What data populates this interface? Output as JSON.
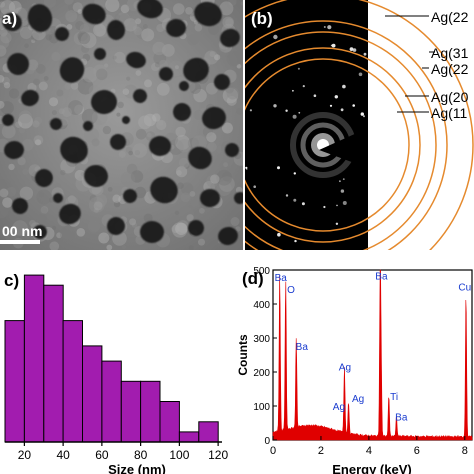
{
  "panel_a": {
    "label": "a)",
    "scale_bar_text": "00 nm"
  },
  "panel_b": {
    "label": "(b)",
    "rings": [
      "Ag(22",
      "Ag(31",
      "Ag(22",
      "Ag(20",
      "Ag(11"
    ]
  },
  "panel_c": {
    "label": "c)",
    "bar_color": "#a21caf",
    "chart_data": {
      "type": "bar",
      "xlabel": "Size (nm)",
      "ylabel": "",
      "x_ticks": [
        20,
        40,
        60,
        80,
        100,
        120
      ],
      "xlim": [
        10,
        122
      ],
      "ylim": [
        0,
        17
      ],
      "bins": [
        {
          "center": 15,
          "value": 12
        },
        {
          "center": 25,
          "value": 16.5
        },
        {
          "center": 35,
          "value": 15.5
        },
        {
          "center": 45,
          "value": 12
        },
        {
          "center": 55,
          "value": 9.5
        },
        {
          "center": 65,
          "value": 8
        },
        {
          "center": 75,
          "value": 6
        },
        {
          "center": 85,
          "value": 6
        },
        {
          "center": 95,
          "value": 4
        },
        {
          "center": 105,
          "value": 1
        },
        {
          "center": 115,
          "value": 2
        }
      ]
    }
  },
  "panel_d": {
    "label": "(d)",
    "spectrum_color": "#e00000",
    "peak_label_color": "#1a3ccf",
    "chart_data": {
      "type": "area",
      "xlabel": "Energy (keV)",
      "ylabel": "Counts",
      "xlim": [
        0,
        8.3
      ],
      "ylim": [
        0,
        500
      ],
      "x_ticks": [
        0,
        2,
        4,
        6,
        8
      ],
      "y_ticks": [
        0,
        100,
        200,
        300,
        400,
        500
      ],
      "peaks": [
        {
          "energy": 0.28,
          "counts": 460
        },
        {
          "energy": 0.53,
          "counts": 440
        },
        {
          "energy": 0.97,
          "counts": 260
        },
        {
          "energy": 2.98,
          "counts": 195
        },
        {
          "energy": 3.15,
          "counts": 95
        },
        {
          "energy": 4.47,
          "counts": 465
        },
        {
          "energy": 4.51,
          "counts": 200
        },
        {
          "energy": 4.83,
          "counts": 120
        },
        {
          "energy": 5.15,
          "counts": 60
        },
        {
          "energy": 8.05,
          "counts": 420
        }
      ],
      "peak_labels": [
        {
          "text": "Ba",
          "energy": 0.32,
          "counts": 468
        },
        {
          "text": "O",
          "energy": 0.75,
          "counts": 432
        },
        {
          "text": "Ba",
          "energy": 1.2,
          "counts": 265
        },
        {
          "text": "Ag",
          "energy": 3.0,
          "counts": 205
        },
        {
          "text": "Ag",
          "energy": 2.75,
          "counts": 88
        },
        {
          "text": "Ag",
          "energy": 3.55,
          "counts": 112
        },
        {
          "text": "Ba",
          "energy": 4.52,
          "counts": 472
        },
        {
          "text": "Ti",
          "energy": 5.05,
          "counts": 118
        },
        {
          "text": "Ba",
          "energy": 5.35,
          "counts": 58
        },
        {
          "text": "Cu",
          "energy": 8.0,
          "counts": 440
        }
      ]
    }
  }
}
